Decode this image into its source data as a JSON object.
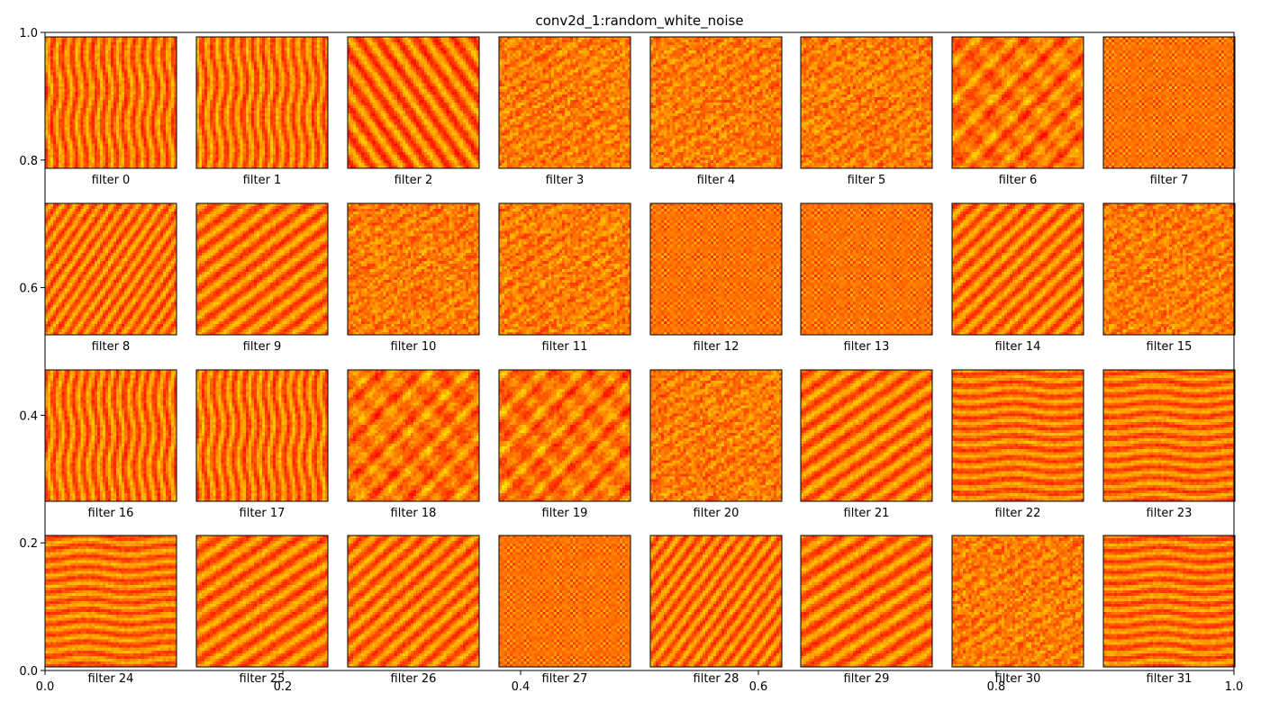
{
  "chart_data": {
    "type": "heatmap",
    "title": "conv2d_1:random_white_noise",
    "xlim": [
      0.0,
      1.0
    ],
    "ylim": [
      0.0,
      1.0
    ],
    "x_ticks": [
      "0.0",
      "0.2",
      "0.4",
      "0.6",
      "0.8",
      "1.0"
    ],
    "y_ticks": [
      "0.0",
      "0.2",
      "0.4",
      "0.6",
      "0.8",
      "1.0"
    ],
    "grid": false,
    "grid_rows": 4,
    "grid_cols": 8,
    "colormap": "autumn",
    "colors": {
      "low": "#ff0000",
      "high": "#ffff00"
    },
    "panels": [
      {
        "label": "filter 0",
        "pattern": "vertical-streaks"
      },
      {
        "label": "filter 1",
        "pattern": "vertical-streaks"
      },
      {
        "label": "filter 2",
        "pattern": "diagonal-streaks"
      },
      {
        "label": "filter 3",
        "pattern": "fine-noise"
      },
      {
        "label": "filter 4",
        "pattern": "fine-noise"
      },
      {
        "label": "filter 5",
        "pattern": "fine-noise"
      },
      {
        "label": "filter 6",
        "pattern": "blotches"
      },
      {
        "label": "filter 7",
        "pattern": "checkerboard"
      },
      {
        "label": "filter 8",
        "pattern": "diagonal-stripes"
      },
      {
        "label": "filter 9",
        "pattern": "diagonal-stripes"
      },
      {
        "label": "filter 10",
        "pattern": "fine-noise"
      },
      {
        "label": "filter 11",
        "pattern": "fine-noise"
      },
      {
        "label": "filter 12",
        "pattern": "checkerboard"
      },
      {
        "label": "filter 13",
        "pattern": "checkerboard"
      },
      {
        "label": "filter 14",
        "pattern": "diagonal-stripes"
      },
      {
        "label": "filter 15",
        "pattern": "fine-noise"
      },
      {
        "label": "filter 16",
        "pattern": "vertical-streaks"
      },
      {
        "label": "filter 17",
        "pattern": "vertical-streaks"
      },
      {
        "label": "filter 18",
        "pattern": "blotches"
      },
      {
        "label": "filter 19",
        "pattern": "blotches"
      },
      {
        "label": "filter 20",
        "pattern": "fine-noise"
      },
      {
        "label": "filter 21",
        "pattern": "diagonal-stripes"
      },
      {
        "label": "filter 22",
        "pattern": "horizontal-stripes"
      },
      {
        "label": "filter 23",
        "pattern": "horizontal-stripes"
      },
      {
        "label": "filter 24",
        "pattern": "horizontal-stripes"
      },
      {
        "label": "filter 25",
        "pattern": "diagonal-stripes"
      },
      {
        "label": "filter 26",
        "pattern": "diagonal-stripes"
      },
      {
        "label": "filter 27",
        "pattern": "checkerboard"
      },
      {
        "label": "filter 28",
        "pattern": "diagonal-stripes"
      },
      {
        "label": "filter 29",
        "pattern": "diagonal-stripes"
      },
      {
        "label": "filter 30",
        "pattern": "fine-noise"
      },
      {
        "label": "filter 31",
        "pattern": "horizontal-stripes"
      }
    ]
  }
}
